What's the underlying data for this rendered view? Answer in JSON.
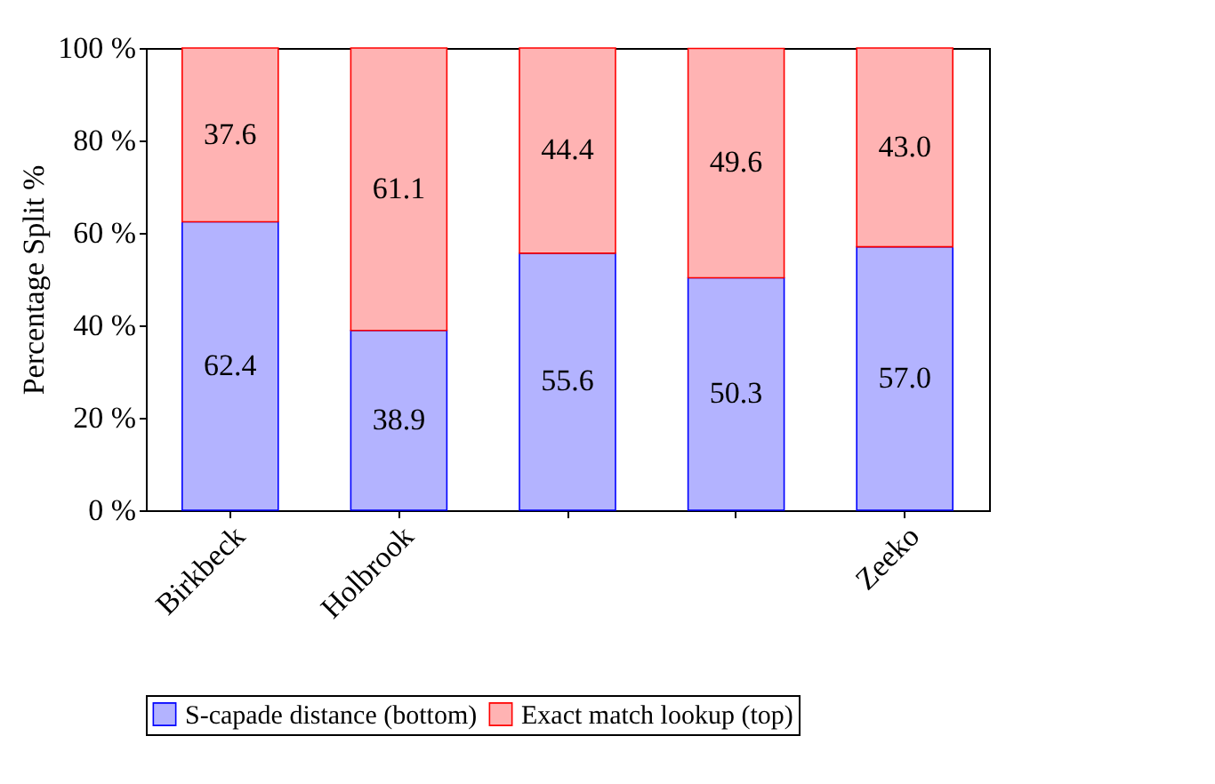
{
  "chart_data": {
    "type": "bar",
    "stacked": true,
    "ylabel": "Percentage Split %",
    "categories": [
      "Birkbeck",
      "Holbrook",
      null,
      null,
      "Zeeko"
    ],
    "series": [
      {
        "name": "S-capade distance (bottom)",
        "color": "#b3b3ff",
        "values": [
          62.4,
          38.9,
          55.6,
          50.3,
          57.0
        ],
        "value_labels": [
          "62.4",
          "38.9",
          "55.6",
          "50.3",
          "57.0"
        ]
      },
      {
        "name": "Exact match lookup (top)",
        "color": "#ffb3b3",
        "values": [
          37.6,
          61.1,
          44.4,
          49.6,
          43.0
        ],
        "value_labels": [
          "37.6",
          "61.1",
          "44.4",
          "49.6",
          "43.0"
        ]
      }
    ],
    "ylim": [
      0,
      100
    ],
    "yticks": [
      {
        "value": 0,
        "label": "0 %"
      },
      {
        "value": 20,
        "label": "20 %"
      },
      {
        "value": 40,
        "label": "40 %"
      },
      {
        "value": 60,
        "label": "60 %"
      },
      {
        "value": 80,
        "label": "80 %"
      },
      {
        "value": 100,
        "label": "100 %"
      }
    ],
    "legend": "bottom",
    "grid": false
  }
}
